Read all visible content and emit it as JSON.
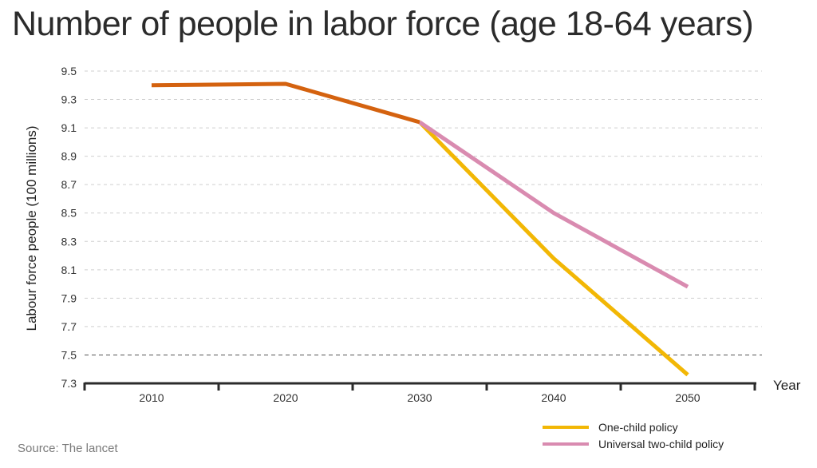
{
  "title": "Number of people in labor force (age 18-64 years)",
  "source": "Source: The lancet",
  "chart_data": {
    "type": "line",
    "title": "Number of people in labor force (age 18-64 years)",
    "xlabel": "Year",
    "ylabel": "Labour force people (100 millions)",
    "x": [
      2010,
      2020,
      2030,
      2040,
      2050
    ],
    "x_tick_labels": [
      "2010",
      "2020",
      "2030",
      "2040",
      "2050"
    ],
    "ylim": [
      7.3,
      9.5
    ],
    "y_ticks": [
      7.3,
      7.5,
      7.7,
      7.9,
      8.1,
      8.3,
      8.5,
      8.7,
      8.9,
      9.1,
      9.3,
      9.5
    ],
    "y_tick_labels": [
      "7.3",
      "7.5",
      "7.7",
      "7.9",
      "8.1",
      "8.3",
      "8.5",
      "8.7",
      "8.9",
      "9.1",
      "9.3",
      "9.5"
    ],
    "grid": true,
    "legend_position": "bottom-right",
    "series": [
      {
        "name": "",
        "color": "#d4620f",
        "x": [
          2010,
          2020,
          2030
        ],
        "values": [
          9.4,
          9.41,
          9.14
        ]
      },
      {
        "name": "One-child policy",
        "color": "#f2b705",
        "x": [
          2030,
          2040,
          2050
        ],
        "values": [
          9.14,
          8.18,
          7.36
        ]
      },
      {
        "name": "Universal two-child policy",
        "color": "#d98bb0",
        "x": [
          2030,
          2040,
          2050
        ],
        "values": [
          9.14,
          8.5,
          7.98
        ]
      }
    ]
  }
}
